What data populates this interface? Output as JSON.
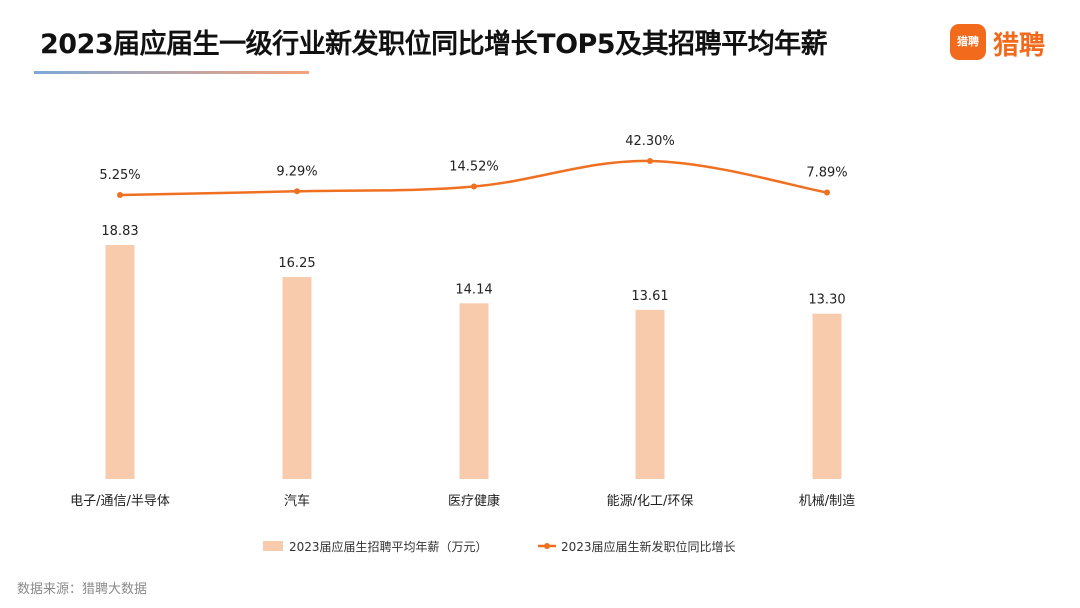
{
  "title": "2023届应届生一级行业新发职位同比增长TOP5及其招聘平均年薪",
  "logo": {
    "badge_text": "猎聘",
    "brand_text": "猎聘",
    "color": "#f26a1b"
  },
  "source": "数据来源：猎聘大数据",
  "chart_data": {
    "type": "bar+line",
    "categories": [
      "电子/通信/半导体",
      "汽车",
      "医疗健康",
      "能源/化工/环保",
      "机械/制造"
    ],
    "series": [
      {
        "name": "2023届应届生招聘平均年薪（万元）",
        "type": "bar",
        "color": "#f8cbad",
        "values": [
          18.83,
          16.25,
          14.14,
          13.61,
          13.3
        ],
        "labels": [
          "18.83",
          "16.25",
          "14.14",
          "13.61",
          "13.30"
        ]
      },
      {
        "name": "2023届应届生新发职位同比增长",
        "type": "line",
        "color": "#f07022",
        "values": [
          5.25,
          9.29,
          14.52,
          42.3,
          7.89
        ],
        "labels": [
          "5.25%",
          "9.29%",
          "14.52%",
          "42.30%",
          "7.89%"
        ]
      }
    ],
    "bar_axis": {
      "min": 0,
      "max": 20
    },
    "line_axis": {
      "min": 0,
      "max": 50
    },
    "grid": false,
    "legend_position": "bottom"
  }
}
